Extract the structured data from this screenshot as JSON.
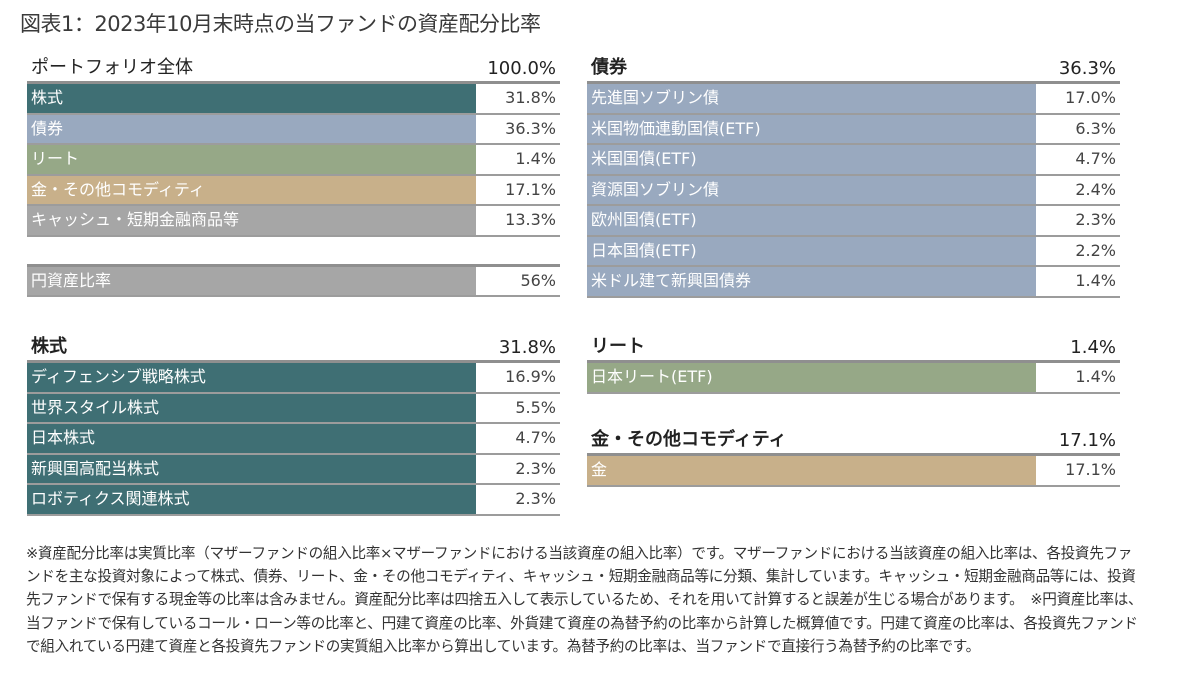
{
  "title": "図表1：2023年10月末時点の当ファンドの資産配分比率",
  "colors": {
    "stock": "#3f6f74",
    "bond": "#99a9bf",
    "reit": "#96a887",
    "gold": "#c8b08a",
    "cash": "#a6a6a6"
  },
  "portfolio": {
    "header_label": "ポートフォリオ全体",
    "header_value": "100.0%",
    "rows": [
      {
        "label": "株式",
        "value": "31.8%"
      },
      {
        "label": "債券",
        "value": "36.3%"
      },
      {
        "label": "リート",
        "value": "1.4%"
      },
      {
        "label": "金・その他コモディティ",
        "value": "17.1%"
      },
      {
        "label": "キャッシュ・短期金融商品等",
        "value": "13.3%"
      }
    ],
    "yen_ratio": {
      "label": "円資産比率",
      "value": "56%"
    }
  },
  "bonds": {
    "header_label": "債券",
    "header_value": "36.3%",
    "rows": [
      {
        "label": "先進国ソブリン債",
        "value": "17.0%"
      },
      {
        "label": "米国物価連動国債(ETF)",
        "value": "6.3%"
      },
      {
        "label": "米国国債(ETF)",
        "value": "4.7%"
      },
      {
        "label": "資源国ソブリン債",
        "value": "2.4%"
      },
      {
        "label": "欧州国債(ETF)",
        "value": "2.3%"
      },
      {
        "label": "日本国債(ETF)",
        "value": "2.2%"
      },
      {
        "label": "米ドル建て新興国債券",
        "value": "1.4%"
      }
    ]
  },
  "stocks": {
    "header_label": "株式",
    "header_value": "31.8%",
    "rows": [
      {
        "label": "ディフェンシブ戦略株式",
        "value": "16.9%"
      },
      {
        "label": "世界スタイル株式",
        "value": "5.5%"
      },
      {
        "label": "日本株式",
        "value": "4.7%"
      },
      {
        "label": "新興国高配当株式",
        "value": "2.3%"
      },
      {
        "label": "ロボティクス関連株式",
        "value": "2.3%"
      }
    ]
  },
  "reit": {
    "header_label": "リート",
    "header_value": "1.4%",
    "rows": [
      {
        "label": "日本リート(ETF)",
        "value": "1.4%"
      }
    ]
  },
  "commodity": {
    "header_label": "金・その他コモディティ",
    "header_value": "17.1%",
    "rows": [
      {
        "label": "金",
        "value": "17.1%"
      }
    ]
  },
  "footnote": "※資産配分比率は実質比率（マザーファンドの組入比率×マザーファンドにおける当該資産の組入比率）です。マザーファンドにおける当該資産の組入比率は、各投資先ファンドを主な投資対象によって株式、債券、リート、金・その他コモディティ、キャッシュ・短期金融商品等に分類、集計しています。キャッシュ・短期金融商品等には、投資先ファンドで保有する現金等の比率は含みません。資産配分比率は四捨五入して表示しているため、それを用いて計算すると誤差が生じる場合があります。　※円資産比率は、当ファンドで保有しているコール・ローン等の比率と、円建て資産の比率、外貨建て資産の為替予約の比率から計算した概算値です。円建て資産の比率は、各投資先ファンドで組入れている円建て資産と各投資先ファンドの実質組入比率から算出しています。為替予約の比率は、当ファンドで直接行う為替予約の比率です。"
}
